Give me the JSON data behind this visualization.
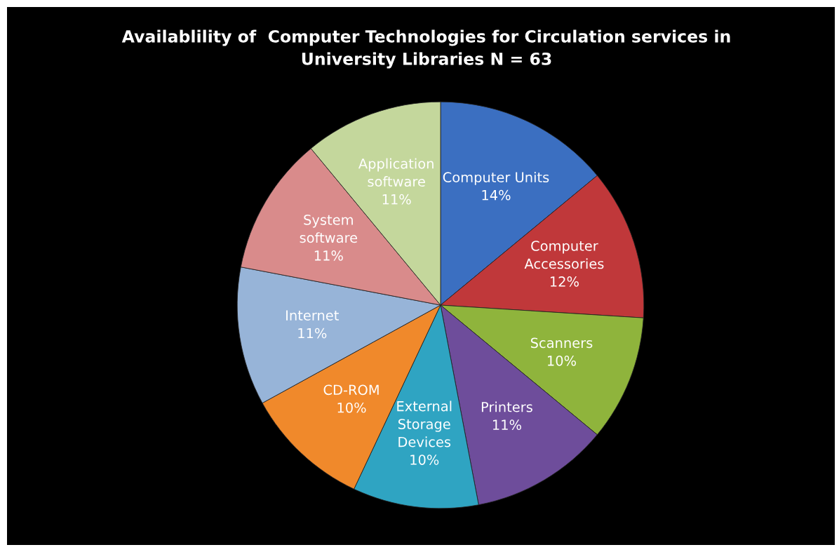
{
  "chart_data": {
    "type": "pie",
    "title": "Availablility of  Computer Technologies for Circulation services in\nUniversity Libraries N = 63",
    "categories": [
      "Computer Units",
      "Computer\nAccessories",
      "Scanners",
      "Printers",
      "External\nStorage\nDevices",
      "CD-ROM",
      "Internet",
      "System\nsoftware",
      "Application\nsoftware"
    ],
    "values": [
      14,
      12,
      10,
      11,
      10,
      10,
      11,
      11,
      11
    ],
    "colors": [
      "#3b6fc1",
      "#c0383a",
      "#8fb43c",
      "#6e4d9b",
      "#2fa4c2",
      "#f0892b",
      "#97b4d8",
      "#d98b8b",
      "#c4d79c"
    ],
    "value_labels": [
      "14%",
      "12%",
      "10%",
      "11%",
      "10%",
      "10%",
      "11%",
      "11%",
      "11%"
    ]
  }
}
